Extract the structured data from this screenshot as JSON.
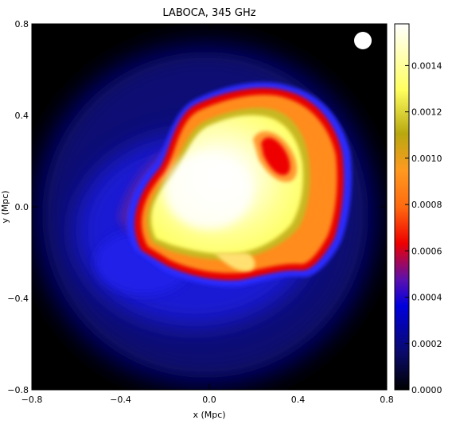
{
  "chart_data": {
    "type": "heatmap",
    "title": "LABOCA, 345 GHz",
    "xlabel": "x (Mpc)",
    "ylabel": "y (Mpc)",
    "xlim": [
      -0.8,
      0.8
    ],
    "ylim": [
      -0.8,
      0.8
    ],
    "x_ticks": [
      -0.8,
      -0.4,
      0.0,
      0.4,
      0.8
    ],
    "y_ticks": [
      -0.8,
      -0.4,
      0.0,
      0.4,
      0.8
    ],
    "x_tick_labels": [
      "−0.8",
      "−0.4",
      "0.0",
      "0.4",
      "0.8"
    ],
    "y_tick_labels": [
      "−0.8",
      "−0.4",
      "0.0",
      "0.4",
      "0.8"
    ],
    "colorbar": {
      "range": [
        0.0,
        0.00158
      ],
      "ticks": [
        0.0,
        0.0002,
        0.0004,
        0.0006,
        0.0008,
        0.001,
        0.0012,
        0.0014
      ],
      "tick_labels": [
        "0.0000",
        "0.0002",
        "0.0004",
        "0.0006",
        "0.0008",
        "0.0010",
        "0.0012",
        "0.0014"
      ],
      "colormap": [
        "#000000",
        "#0a0a6a",
        "#0000dd",
        "#5a10b0",
        "#ee0000",
        "#ff8a10",
        "#b8a810",
        "#ffff60",
        "#ffffff"
      ]
    },
    "emission_regions": [
      {
        "region": "faint halo",
        "center": [
          -0.02,
          -0.04
        ],
        "radius": [
          0.78,
          0.76
        ],
        "level": 0.00014
      },
      {
        "region": "blue envelope",
        "center": [
          -0.04,
          -0.08
        ],
        "radius": [
          0.55,
          0.45
        ],
        "level": 0.00022
      },
      {
        "region": "orange rim",
        "center": [
          0.05,
          0.05
        ],
        "radius": [
          0.44,
          0.4
        ],
        "level": 0.00095
      },
      {
        "region": "yellow interior",
        "center": [
          0.0,
          0.03
        ],
        "radius": [
          0.35,
          0.34
        ],
        "level": 0.0013
      },
      {
        "region": "white core",
        "center": [
          -0.02,
          0.06
        ],
        "radius": [
          0.15,
          0.14
        ],
        "level": 0.00155
      },
      {
        "region": "red knot",
        "center": [
          0.31,
          0.2
        ],
        "radius": [
          0.06,
          0.09
        ],
        "level": 0.00075
      }
    ],
    "beam_marker": {
      "x": 0.68,
      "y": 0.74,
      "color": "#ffffff"
    }
  }
}
